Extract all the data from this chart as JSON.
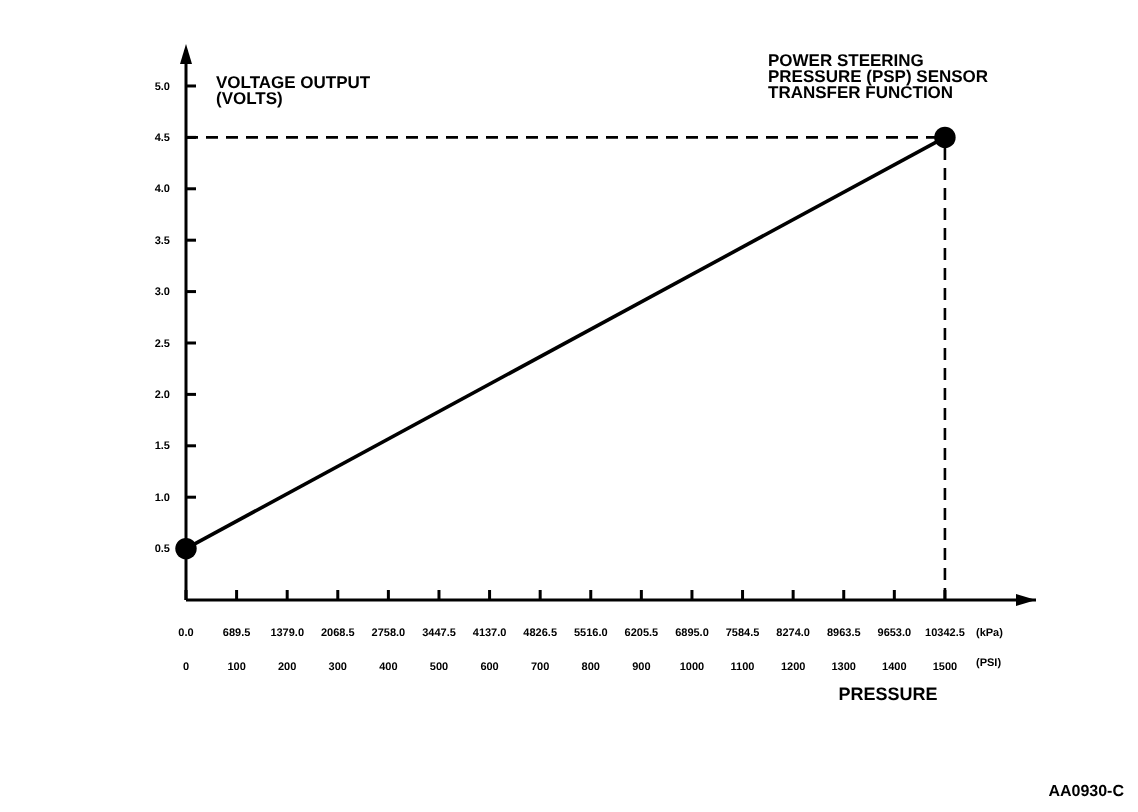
{
  "chart_data": {
    "type": "line",
    "title": "POWER STEERING PRESSURE (PSP) SENSOR TRANSFER FUNCTION",
    "ylabel": "VOLTAGE OUTPUT (VOLTS)",
    "xlabel": "PRESSURE",
    "annotations": [
      "(kPa)",
      "(PSI)",
      "AA0930-C"
    ],
    "series": [
      {
        "color": "#000000",
        "x": [
          0,
          1500
        ],
        "values": [
          0.5,
          4.5
        ]
      }
    ],
    "marker": "circle",
    "line_style": "solid",
    "grid": false,
    "xlim": [
      0,
      1680
    ],
    "xticks": [
      0,
      100,
      200,
      300,
      400,
      500,
      600,
      700,
      800,
      900,
      1000,
      1100,
      1200,
      1300,
      1400,
      1500
    ],
    "x2lim": [
      0,
      11583.6
    ],
    "x2ticks": [
      {
        "value": 0,
        "label": "0.0"
      },
      689.5,
      {
        "value": 1379,
        "label": "1379.0"
      },
      2068.5,
      {
        "value": 2758,
        "label": "2758.0"
      },
      3447.5,
      {
        "value": 4137,
        "label": "4137.0"
      },
      4826.5,
      {
        "value": 5516,
        "label": "5516.0"
      },
      6205.5,
      {
        "value": 6895,
        "label": "6895.0"
      },
      7584.5,
      {
        "value": 8274,
        "label": "8274.0"
      },
      8963.5,
      {
        "value": 9653,
        "label": "9653.0"
      },
      10342.5
    ],
    "ylim": [
      0,
      5.35
    ],
    "yticks": [
      0.5,
      {
        "value": 1,
        "label": "1.0"
      },
      1.5,
      {
        "value": 2,
        "label": "2.0"
      },
      2.5,
      {
        "value": 3,
        "label": "3.0"
      },
      3.5,
      {
        "value": 4,
        "label": "4.0"
      },
      4.5,
      {
        "value": 5,
        "label": "5.0"
      }
    ],
    "ref_lines": [
      {
        "axis": "y",
        "value": 4.5,
        "line_style": "dashed",
        "color": "#000000"
      },
      {
        "axis": "x",
        "value": 1500,
        "line_style": "dashed",
        "color": "#000000"
      }
    ]
  }
}
